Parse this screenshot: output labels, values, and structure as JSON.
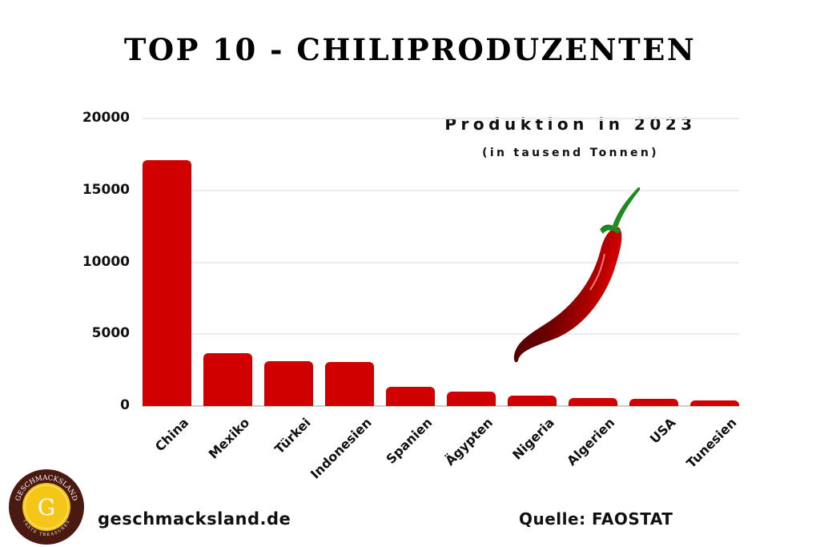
{
  "header": {
    "title": "TOP 10 - CHILIPRODUZENTEN",
    "subtitle": "Produktion in 2023",
    "unit": "(in tausend Tonnen)"
  },
  "footer": {
    "website": "geschmacksland.de",
    "source": "Quelle: FAOSTAT",
    "logo_text_top": "GESCHMACKSLAND",
    "logo_text_bottom": "TASTE TREASURES",
    "logo_letter": "G"
  },
  "colors": {
    "bar": "#d10000",
    "logo_ring": "#4a1a10",
    "logo_center": "#f5c518"
  },
  "yaxis": {
    "ticks": [
      "20000",
      "15000",
      "10000",
      "5000",
      "0"
    ]
  },
  "decoration": {
    "icon": "chili-pepper-icon"
  },
  "chart_data": {
    "type": "bar",
    "title": "TOP 10 - CHILIPRODUZENTEN",
    "subtitle": "Produktion in 2023 (in tausend Tonnen)",
    "xlabel": "",
    "ylabel": "",
    "categories": [
      "China",
      "Mexiko",
      "Türkei",
      "Indonesien",
      "Spanien",
      "Ägypten",
      "Nigeria",
      "Algerien",
      "USA",
      "Tunesien"
    ],
    "values": [
      17100,
      3700,
      3100,
      3050,
      1350,
      1000,
      730,
      580,
      500,
      400
    ],
    "ylim": [
      0,
      20000
    ],
    "yticks": [
      0,
      5000,
      10000,
      15000,
      20000
    ],
    "grid": true,
    "legend": "none",
    "source": "FAOSTAT"
  }
}
